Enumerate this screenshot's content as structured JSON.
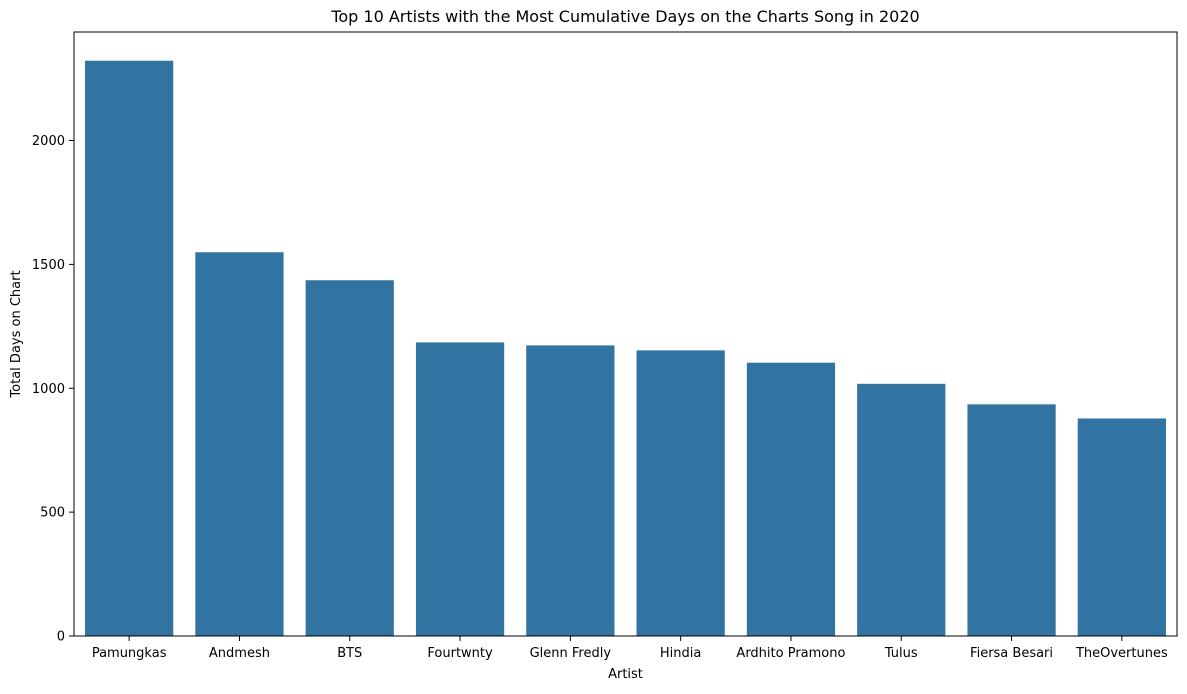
{
  "chart_data": {
    "type": "bar",
    "title": "Top 10 Artists with the Most Cumulative Days on the Charts Song in 2020",
    "xlabel": "Artist",
    "ylabel": "Total Days on Chart",
    "categories": [
      "Pamungkas",
      "Andmesh",
      "BTS",
      "Fourtwnty",
      "Glenn Fredly",
      "Hindia",
      "Ardhito Pramono",
      "Tulus",
      "Fiersa Besari",
      "TheOvertunes"
    ],
    "values": [
      2322,
      1549,
      1436,
      1185,
      1173,
      1153,
      1103,
      1018,
      935,
      878
    ],
    "ylim": [
      0,
      2438
    ],
    "yticks": [
      0,
      500,
      1000,
      1500,
      2000
    ],
    "grid": false,
    "bar_color": "#3274a1"
  }
}
